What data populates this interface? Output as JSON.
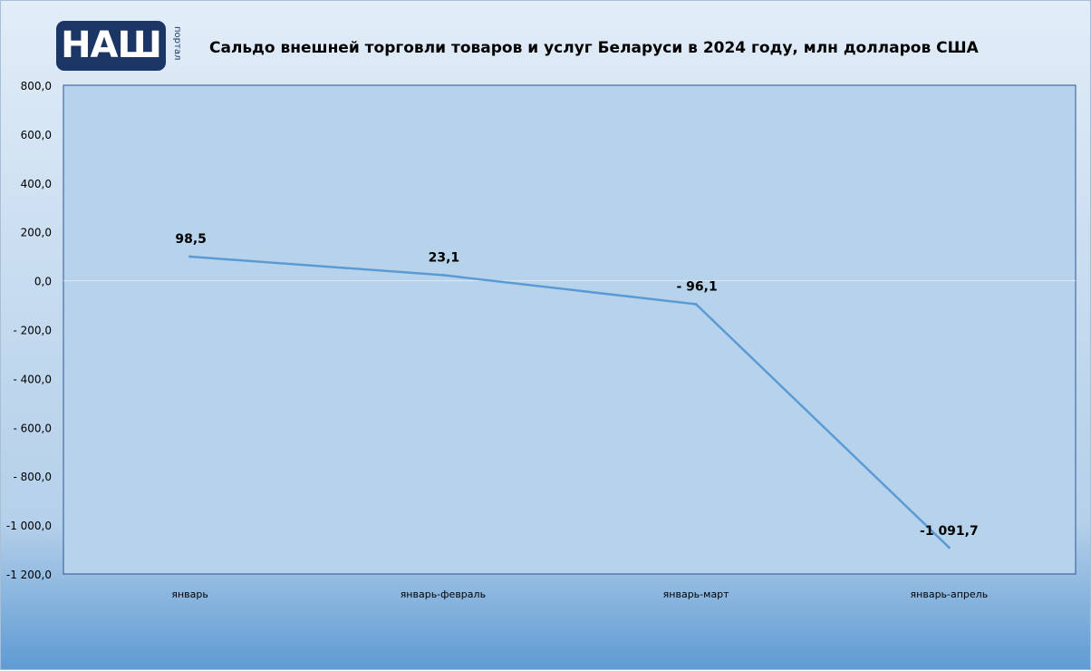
{
  "logo": {
    "text": "НАШ",
    "subtext": "портал",
    "color": "#1b3665"
  },
  "chart_data": {
    "type": "line",
    "title": "Сальдо внешней торговли товаров и услуг Беларуси в 2024 году, млн долларов США",
    "categories": [
      "январь",
      "январь-февраль",
      "январь-март",
      "январь-апрель"
    ],
    "values": [
      98.5,
      23.1,
      -96.1,
      -1091.7
    ],
    "data_labels": [
      "98,5",
      "23,1",
      "- 96,1",
      "-1 091,7"
    ],
    "ylim": [
      -1200,
      800
    ],
    "y_ticks": [
      800,
      600,
      400,
      200,
      0,
      -200,
      -400,
      -600,
      -800,
      -1000,
      -1200
    ],
    "y_tick_labels": [
      "800,0",
      "600,0",
      "400,0",
      "200,0",
      "0,0",
      "- 200,0",
      "- 400,0",
      "- 600,0",
      "- 800,0",
      "-1 000,0",
      "-1 200,0"
    ],
    "xlabel": "",
    "ylabel": "",
    "grid": false,
    "legend": "none",
    "colors": {
      "line": "#5b9bd5",
      "plot_bg": "#b7d3eb",
      "axis": "#2f5597",
      "zero_line": "#d9e6f2"
    }
  }
}
